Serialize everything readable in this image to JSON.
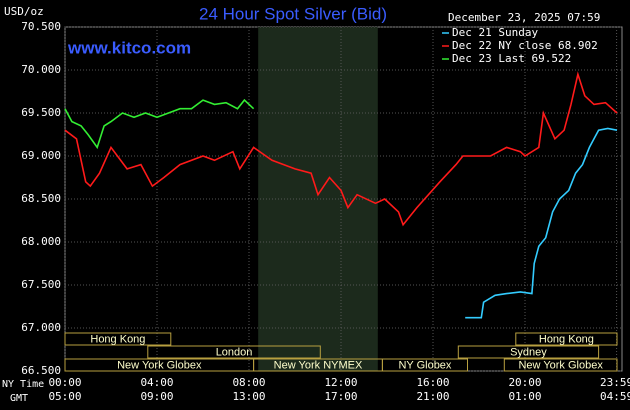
{
  "chart_data": {
    "type": "line",
    "title": "24 Hour Spot Silver (Bid)",
    "date_label": "December 23, 2025 07:59",
    "y_unit": "USD/oz",
    "watermark": "www.kitco.com",
    "legend_position": "upper right",
    "grid": true,
    "background": "#000000",
    "xlim": [
      0,
      24
    ],
    "ylim": [
      66.5,
      70.5
    ],
    "yticks": [
      {
        "value": 66.5,
        "label": "66.500"
      },
      {
        "value": 67,
        "label": "67.000"
      },
      {
        "value": 67.5,
        "label": "67.500"
      },
      {
        "value": 68,
        "label": "68.000"
      },
      {
        "value": 68.5,
        "label": "68.500"
      },
      {
        "value": 69,
        "label": "69.000"
      },
      {
        "value": 69.5,
        "label": "69.500"
      },
      {
        "value": 70,
        "label": "70.000"
      },
      {
        "value": 70.5,
        "label": "70.500"
      }
    ],
    "xticks": [
      {
        "value": 0,
        "label": "00:00"
      },
      {
        "value": 4,
        "label": "04:00"
      },
      {
        "value": 8,
        "label": "08:00"
      },
      {
        "value": 12,
        "label": "12:00"
      },
      {
        "value": 16,
        "label": "16:00"
      },
      {
        "value": 20,
        "label": "20:00"
      },
      {
        "value": 23.983,
        "label": "23:59"
      }
    ],
    "gmt_labels": [
      "05:00",
      "09:00",
      "13:00",
      "17:00",
      "21:00",
      "01:00",
      "04:59"
    ],
    "x_axis_names": [
      "NY Time",
      "GMT"
    ],
    "highlight_x": [
      8.4,
      13.6
    ],
    "sessions": [
      {
        "label": "Hong Kong",
        "start": 0,
        "end": 4.6,
        "row": 0
      },
      {
        "label": "Hong Kong",
        "start": 19.6,
        "end": 24,
        "row": 0
      },
      {
        "label": "London",
        "start": 3.6,
        "end": 11.1,
        "row": 1
      },
      {
        "label": "Sydney",
        "start": 17.1,
        "end": 23.2,
        "row": 1
      },
      {
        "label": "New York Globex",
        "start": 0,
        "end": 8.2,
        "row": 2
      },
      {
        "label": "New York NYMEX",
        "start": 8.2,
        "end": 13.8,
        "row": 2
      },
      {
        "label": "NY Globex",
        "start": 13.8,
        "end": 17.5,
        "row": 2
      },
      {
        "label": "New York Globex",
        "start": 19.1,
        "end": 24,
        "row": 2
      }
    ],
    "series": [
      {
        "name": "Dec 21 Sunday",
        "color": "#33ccff",
        "x": [
          17.4,
          18.1,
          18.2,
          18.7,
          19.2,
          19.8,
          20.3,
          20.4,
          20.6,
          20.9,
          21.2,
          21.5,
          21.9,
          22.2,
          22.5,
          22.8,
          23.0,
          23.2,
          23.6,
          24
        ],
        "values": [
          67.12,
          67.12,
          67.3,
          67.38,
          67.4,
          67.42,
          67.4,
          67.75,
          67.95,
          68.05,
          68.35,
          68.5,
          68.6,
          68.8,
          68.9,
          69.1,
          69.2,
          69.3,
          69.32,
          69.3
        ]
      },
      {
        "name": "Dec 22 NY close 68.902",
        "color": "#ff1a1a",
        "x": [
          0,
          0.5,
          0.9,
          1.1,
          1.5,
          2.0,
          2.7,
          3.3,
          3.8,
          4.3,
          5.0,
          6.0,
          6.5,
          7.3,
          7.6,
          8.2,
          9.0,
          10.0,
          10.7,
          11.0,
          11.5,
          12.0,
          12.3,
          12.7,
          13.5,
          13.9,
          14.5,
          14.7,
          15.3,
          16.3,
          17.0,
          17.3,
          18.5,
          19.2,
          19.8,
          20.0,
          20.6,
          20.8,
          21.3,
          21.7,
          22.0,
          22.3,
          22.6,
          23.0,
          23.5,
          24
        ],
        "values": [
          69.3,
          69.2,
          68.7,
          68.65,
          68.8,
          69.1,
          68.85,
          68.9,
          68.65,
          68.75,
          68.9,
          69.0,
          68.95,
          69.05,
          68.85,
          69.1,
          68.95,
          68.85,
          68.8,
          68.55,
          68.75,
          68.6,
          68.4,
          68.55,
          68.45,
          68.5,
          68.35,
          68.2,
          68.4,
          68.7,
          68.9,
          69.0,
          69.0,
          69.1,
          69.05,
          69.0,
          69.1,
          69.5,
          69.2,
          69.3,
          69.6,
          69.95,
          69.7,
          69.6,
          69.62,
          69.5
        ]
      },
      {
        "name": "Dec 23 Last 69.522",
        "color": "#33ee33",
        "x": [
          0,
          0.3,
          0.7,
          1.0,
          1.4,
          1.7,
          2.0,
          2.5,
          3.0,
          3.5,
          4.0,
          4.5,
          5.0,
          5.5,
          6.0,
          6.5,
          7.0,
          7.5,
          7.8,
          8.2
        ],
        "values": [
          69.55,
          69.4,
          69.35,
          69.25,
          69.1,
          69.35,
          69.4,
          69.5,
          69.45,
          69.5,
          69.45,
          69.5,
          69.55,
          69.55,
          69.65,
          69.6,
          69.62,
          69.55,
          69.65,
          69.55
        ]
      }
    ]
  }
}
